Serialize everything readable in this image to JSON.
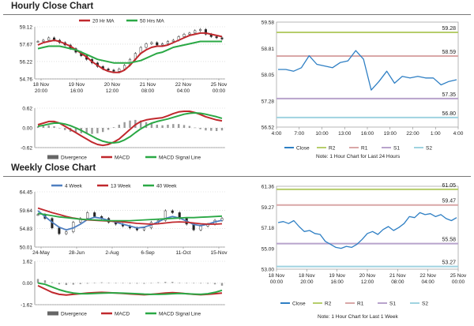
{
  "hourly": {
    "title": "Hourly Close Chart",
    "price_chart": {
      "type": "line",
      "legend": [
        "20 Hr MA",
        "50 Hrs MA"
      ],
      "y_ticks": [
        "59.12",
        "57.67",
        "56.22",
        "54.76"
      ],
      "ylim": [
        54.76,
        59.12
      ],
      "x_ticks": [
        [
          "18 Nov",
          "20:00"
        ],
        [
          "19 Nov",
          "16:00"
        ],
        [
          "20 Nov",
          "12:00"
        ],
        [
          "21 Nov",
          "08:00"
        ],
        [
          "22 Nov",
          "04:00"
        ],
        [
          "25 Nov",
          "00:00"
        ]
      ],
      "candles_approx": [
        57.9,
        58.0,
        58.2,
        58.0,
        57.8,
        57.6,
        57.3,
        57.0,
        56.7,
        56.4,
        56.1,
        55.8,
        55.6,
        55.5,
        55.4,
        55.6,
        55.9,
        56.4,
        56.9,
        57.4,
        57.7,
        57.8,
        57.6,
        57.7,
        57.9,
        58.0,
        58.3,
        58.5,
        58.6,
        58.8,
        58.9,
        58.5,
        58.3,
        58.2,
        58.1
      ],
      "series": [
        {
          "name": "20 Hr MA",
          "color": "#c0282d",
          "values": [
            57.6,
            57.8,
            57.9,
            58.0,
            57.9,
            57.7,
            57.5,
            57.2,
            56.9,
            56.6,
            56.2,
            55.9,
            55.6,
            55.4,
            55.3,
            55.3,
            55.5,
            55.9,
            56.4,
            56.9,
            57.2,
            57.4,
            57.5,
            57.5,
            57.6,
            57.8,
            58.0,
            58.2,
            58.4,
            58.5,
            58.6,
            58.6,
            58.5,
            58.4,
            58.3
          ]
        },
        {
          "name": "50 Hrs MA",
          "color": "#2aa845",
          "values": [
            57.3,
            57.4,
            57.5,
            57.5,
            57.5,
            57.4,
            57.3,
            57.2,
            57.0,
            56.8,
            56.6,
            56.4,
            56.3,
            56.2,
            56.1,
            56.1,
            56.1,
            56.1,
            56.2,
            56.3,
            56.5,
            56.7,
            56.9,
            57.0,
            57.2,
            57.4,
            57.5,
            57.6,
            57.7,
            57.8,
            57.9,
            57.9,
            57.9,
            57.9,
            57.9
          ]
        }
      ]
    },
    "macd_chart": {
      "type": "line",
      "y_ticks": [
        "0.62",
        "0.00",
        "-0.62"
      ],
      "ylim": [
        -0.62,
        0.62
      ],
      "legend": [
        "Divergence",
        "MACD",
        "MACD Signal Line"
      ],
      "series": [
        {
          "name": "MACD",
          "color": "#c0282d",
          "values": [
            0.1,
            0.15,
            0.2,
            0.2,
            0.15,
            0.05,
            -0.05,
            -0.15,
            -0.25,
            -0.35,
            -0.45,
            -0.52,
            -0.55,
            -0.52,
            -0.45,
            -0.35,
            -0.2,
            -0.05,
            0.1,
            0.2,
            0.25,
            0.28,
            0.3,
            0.32,
            0.38,
            0.45,
            0.5,
            0.52,
            0.52,
            0.48,
            0.42,
            0.35,
            0.3,
            0.25,
            0.22
          ]
        },
        {
          "name": "MACD Signal Line",
          "color": "#2aa845",
          "values": [
            0.05,
            0.08,
            0.12,
            0.15,
            0.15,
            0.12,
            0.07,
            0.0,
            -0.08,
            -0.17,
            -0.26,
            -0.35,
            -0.42,
            -0.46,
            -0.47,
            -0.45,
            -0.38,
            -0.28,
            -0.15,
            -0.03,
            0.07,
            0.15,
            0.2,
            0.24,
            0.28,
            0.33,
            0.38,
            0.43,
            0.46,
            0.47,
            0.46,
            0.43,
            0.39,
            0.35,
            0.3
          ]
        }
      ],
      "divergence": [
        0.05,
        0.07,
        0.08,
        0.05,
        0.0,
        -0.07,
        -0.12,
        -0.15,
        -0.17,
        -0.18,
        -0.19,
        -0.17,
        -0.13,
        -0.06,
        0.02,
        0.1,
        0.18,
        0.23,
        0.25,
        0.23,
        0.18,
        0.13,
        0.1,
        0.08,
        0.1,
        0.12,
        0.12,
        0.09,
        0.06,
        0.01,
        -0.04,
        -0.08,
        -0.09,
        -0.1,
        -0.08
      ]
    },
    "pivot_chart": {
      "type": "line",
      "y_ticks": [
        "59.58",
        "58.81",
        "58.05",
        "57.28",
        "56.52"
      ],
      "ylim": [
        56.52,
        59.58
      ],
      "x_ticks": [
        "4:00",
        "7:00",
        "10:00",
        "13:00",
        "16:00",
        "19:00",
        "22:00",
        "1:00",
        "4:00"
      ],
      "levels": [
        {
          "name": "R2",
          "value": 59.28,
          "label": "59.28",
          "color": "#b6cd6b"
        },
        {
          "name": "R1",
          "value": 58.59,
          "label": "58.59",
          "color": "#d9a7a7"
        },
        {
          "name": "S1",
          "value": 57.35,
          "label": "57.35",
          "color": "#b8a3cc"
        },
        {
          "name": "S2",
          "value": 56.8,
          "label": "56.80",
          "color": "#9fd3e0"
        }
      ],
      "close": [
        58.2,
        58.2,
        58.15,
        58.25,
        58.6,
        58.35,
        58.3,
        58.25,
        58.4,
        58.45,
        58.75,
        58.5,
        57.6,
        57.85,
        58.15,
        57.8,
        58.0,
        57.95,
        58.0,
        57.95,
        57.95,
        57.75,
        57.85,
        57.9
      ],
      "legend": [
        "Close",
        "R2",
        "R1",
        "S1",
        "S2"
      ],
      "note": "Note: 1 Hour Chart for Last 24 Hours"
    }
  },
  "weekly": {
    "title": "Weekly Close Chart",
    "price_chart": {
      "type": "line",
      "legend": [
        "4 Week",
        "13 Week",
        "40 Week"
      ],
      "y_ticks": [
        "64.45",
        "59.64",
        "54.83",
        "50.01"
      ],
      "ylim": [
        50.01,
        64.45
      ],
      "x_ticks": [
        "24-May",
        "28-Jun",
        "2-Aug",
        "6-Sep",
        "11-Oct",
        "15-Nov"
      ],
      "candles_approx": [
        58.5,
        57.5,
        55.0,
        53.5,
        54.0,
        56.5,
        57.5,
        59.0,
        58.0,
        57.5,
        56.5,
        56.0,
        55.5,
        55.0,
        54.5,
        55.0,
        56.5,
        57.0,
        59.5,
        59.0,
        57.5,
        56.0,
        54.5,
        55.5,
        56.0,
        57.0,
        57.5
      ],
      "series": [
        {
          "name": "4 Week",
          "color": "#4f7fc0",
          "values": [
            59.5,
            58.0,
            56.5,
            55.2,
            54.5,
            55.0,
            56.0,
            57.2,
            57.8,
            57.5,
            57.0,
            56.5,
            56.0,
            55.5,
            55.0,
            55.2,
            55.8,
            56.6,
            57.5,
            58.0,
            57.6,
            56.8,
            55.9,
            55.6,
            56.0,
            56.6,
            57.0
          ]
        },
        {
          "name": "13 Week",
          "color": "#c0282d",
          "values": [
            60.2,
            59.6,
            59.0,
            58.5,
            58.0,
            57.6,
            57.3,
            57.1,
            57.0,
            56.9,
            56.8,
            56.7,
            56.6,
            56.4,
            56.2,
            56.1,
            56.0,
            56.1,
            56.3,
            56.5,
            56.6,
            56.5,
            56.3,
            56.1,
            56.0,
            56.0,
            56.1
          ]
        },
        {
          "name": "40 Week",
          "color": "#2aa845",
          "values": [
            58.8,
            58.5,
            58.2,
            57.9,
            57.7,
            57.5,
            57.3,
            57.2,
            57.1,
            57.0,
            56.9,
            56.9,
            56.9,
            56.9,
            57.0,
            57.1,
            57.2,
            57.3,
            57.4,
            57.5,
            57.6,
            57.7,
            57.7,
            57.8,
            57.9,
            58.0,
            58.1
          ]
        }
      ]
    },
    "macd_chart": {
      "type": "line",
      "y_ticks": [
        "1.62",
        "0.00",
        "-1.62"
      ],
      "ylim": [
        -1.62,
        1.62
      ],
      "legend": [
        "Divergence",
        "MACD",
        "MACD Signal Line"
      ],
      "series": [
        {
          "name": "MACD",
          "color": "#c0282d",
          "values": [
            -0.2,
            -0.45,
            -0.7,
            -0.85,
            -0.9,
            -0.85,
            -0.8,
            -0.75,
            -0.72,
            -0.7,
            -0.72,
            -0.75,
            -0.78,
            -0.82,
            -0.85,
            -0.88,
            -0.85,
            -0.8,
            -0.75,
            -0.72,
            -0.75,
            -0.8,
            -0.85,
            -0.88,
            -0.85,
            -0.8,
            -0.75
          ]
        },
        {
          "name": "MACD Signal Line",
          "color": "#2aa845",
          "values": [
            0.0,
            -0.1,
            -0.3,
            -0.5,
            -0.65,
            -0.75,
            -0.8,
            -0.8,
            -0.78,
            -0.76,
            -0.74,
            -0.74,
            -0.76,
            -0.78,
            -0.8,
            -0.83,
            -0.85,
            -0.85,
            -0.83,
            -0.8,
            -0.78,
            -0.8,
            -0.83,
            -0.85,
            -0.8,
            -0.7,
            -0.55
          ]
        }
      ],
      "divergence": [
        0.3,
        0.2,
        0.05,
        -0.1,
        -0.15,
        -0.12,
        -0.08,
        -0.05,
        0.02,
        0.05,
        0.03,
        -0.02,
        -0.03,
        -0.05,
        -0.05,
        -0.06,
        0.0,
        0.05,
        0.08,
        0.08,
        0.03,
        0.0,
        -0.03,
        -0.04,
        -0.05,
        -0.1,
        -0.2
      ]
    },
    "pivot_chart": {
      "type": "line",
      "y_ticks": [
        "61.36",
        "59.27",
        "57.18",
        "55.09",
        "53.00"
      ],
      "ylim": [
        53.0,
        61.36
      ],
      "x_ticks": [
        [
          "18 Nov",
          "00:00"
        ],
        [
          "18 Nov",
          "20:00"
        ],
        [
          "19 Nov",
          "16:00"
        ],
        [
          "20 Nov",
          "12:00"
        ],
        [
          "21 Nov",
          "08:00"
        ],
        [
          "22 Nov",
          "04:00"
        ],
        [
          "25 Nov",
          "00:00"
        ]
      ],
      "levels": [
        {
          "name": "R2",
          "value": 61.05,
          "label": "61.05",
          "color": "#b6cd6b"
        },
        {
          "name": "R1",
          "value": 59.47,
          "label": "59.47",
          "color": "#d9a7a7"
        },
        {
          "name": "S1",
          "value": 55.58,
          "label": "55.58",
          "color": "#b8a3cc"
        },
        {
          "name": "S2",
          "value": 53.27,
          "label": "53.27",
          "color": "#9fd3e0"
        }
      ],
      "close": [
        57.7,
        57.8,
        57.6,
        57.9,
        57.3,
        56.8,
        56.9,
        56.6,
        56.5,
        55.8,
        55.5,
        55.2,
        55.1,
        55.3,
        55.2,
        55.5,
        56.0,
        56.6,
        56.8,
        56.5,
        57.0,
        57.3,
        56.9,
        57.2,
        57.6,
        58.3,
        58.2,
        58.7,
        58.5,
        58.6,
        58.3,
        58.5,
        58.1,
        57.9,
        58.2
      ],
      "legend": [
        "Close",
        "R2",
        "R1",
        "S1",
        "S2"
      ],
      "note": "Note: 1 Hour Chart for Last 1 Week"
    }
  }
}
